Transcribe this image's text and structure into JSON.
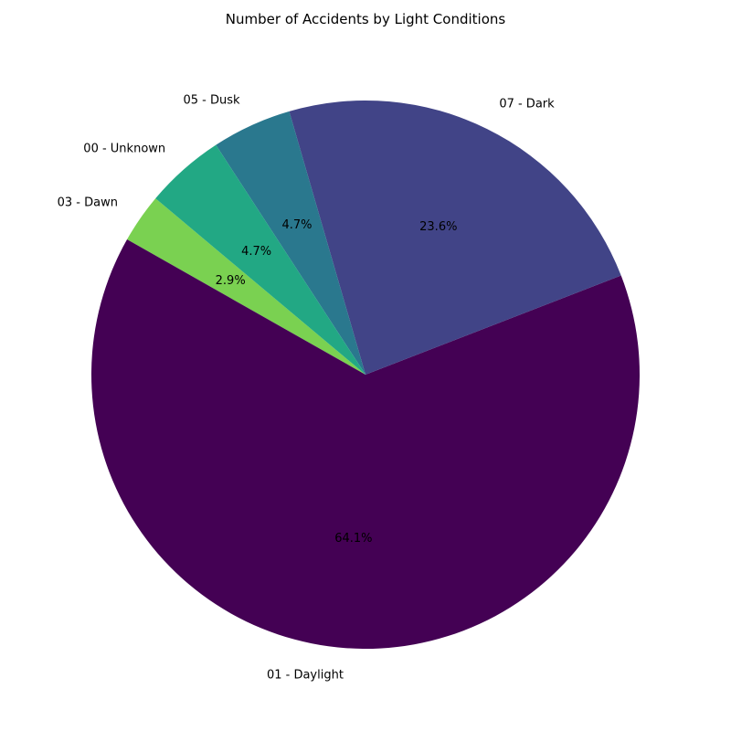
{
  "chart_data": {
    "type": "pie",
    "title": "Number of Accidents by Light Conditions",
    "start_angle_deg": 140,
    "direction": "counterclockwise",
    "slices": [
      {
        "label": "03 - Dawn",
        "percent": 2.9,
        "percent_label": "2.9%",
        "color": "#7ad151"
      },
      {
        "label": "01 - Daylight",
        "percent": 64.1,
        "percent_label": "64.1%",
        "color": "#440154"
      },
      {
        "label": "07 - Dark",
        "percent": 23.6,
        "percent_label": "23.6%",
        "color": "#414487"
      },
      {
        "label": "05 - Dusk",
        "percent": 4.7,
        "percent_label": "4.7%",
        "color": "#2a788e"
      },
      {
        "label": "00 - Unknown",
        "percent": 4.7,
        "percent_label": "4.7%",
        "color": "#22a884"
      }
    ]
  }
}
